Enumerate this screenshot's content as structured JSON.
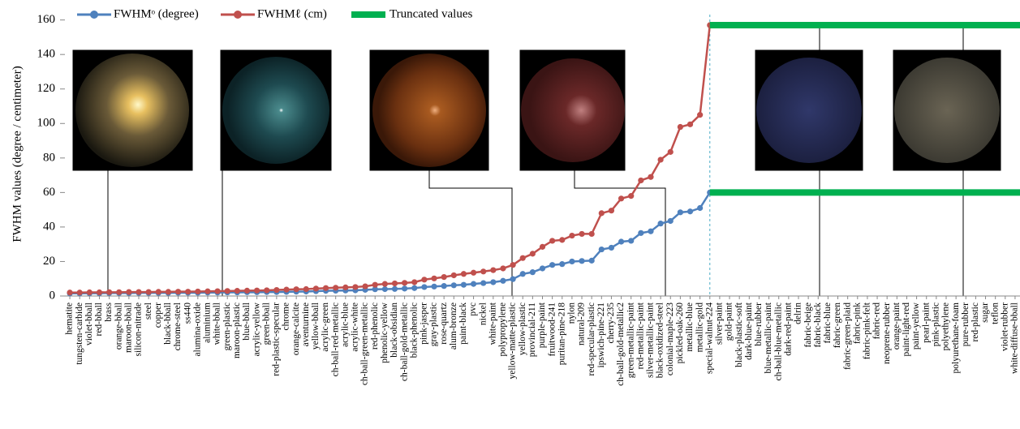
{
  "chart_data": {
    "type": "line",
    "y_label": "FWHM values (degree / centimeter)",
    "categories": [
      "hematite",
      "tungsten-carbide",
      "violet-bball",
      "red-bball",
      "brass",
      "orange-bball",
      "maroon-bball",
      "silicon-nitrade",
      "steel",
      "copper",
      "black-bball",
      "chrome-steel",
      "ss440",
      "alumina-oxide",
      "aluminium",
      "white-bball",
      "green-plastic",
      "maroon-plastic",
      "blue-bball",
      "acrylic-yellow",
      "green-bball",
      "red-plastic-specular",
      "chrome",
      "orange-calcite",
      "aventurnine",
      "yellow-bball",
      "acrylic-green",
      "ch-ball-red-metallic",
      "acrylic-blue",
      "acrylic-white",
      "ch-ball-green-metallic",
      "red-phenolic",
      "phenolic-yellow",
      "black-obsidian",
      "ch-ball-gold-metallic",
      "black-phenolic",
      "pink-jasper",
      "gray-plastic",
      "rose-quartz",
      "alum-bronze",
      "paint-black",
      "pvc",
      "nickel",
      "white-paint",
      "polypropylene",
      "yellow-matte-plastic",
      "yellow-plastic",
      "provincial-211",
      "purple-paint",
      "fruitwood-241",
      "puritan-pine-218",
      "nylon",
      "natural-209",
      "red-specular-plastic",
      "ipswich-pine-221",
      "cherry-235",
      "ch-ball-gold-metallic2",
      "green-metallic-paint",
      "red-metallic-paint",
      "silver-metallic-paint",
      "black-oxidized-steel",
      "colonial-maple-223",
      "pickled-oak-260",
      "metallic-blue",
      "metallic-gold",
      "special-walnut-224",
      "silver-paint",
      "gold-paint",
      "black-plastic-soft",
      "dark-blue-paint",
      "blue-rubber",
      "blue-metallic-paint",
      "ch-ball-blue-metallic",
      "dark-red-paint",
      "delrin",
      "fabric-beige",
      "fabric-black",
      "fabric-blue",
      "fabric-green",
      "fabric-green-plaid",
      "fabric-pink",
      "fabric-pink-felt",
      "fabric-red",
      "neoprene-rubber",
      "orange-paint",
      "paint-light-red",
      "paint-yellow",
      "pearl-paint",
      "pink-plastic",
      "polyethylene",
      "polyurethane-foam",
      "pure-rubber",
      "red-plastic",
      "sugar",
      "teflon",
      "violet-rubber",
      "white-diffuse-bball"
    ],
    "series": [
      {
        "name": "FWHMᵒ (degree)",
        "color": "#4f81bd",
        "values": [
          1.5,
          1.5,
          1.6,
          1.6,
          1.7,
          1.7,
          1.7,
          1.8,
          1.8,
          1.8,
          1.8,
          1.9,
          1.9,
          1.9,
          2.0,
          2.0,
          2.1,
          2.1,
          2.2,
          2.2,
          2.3,
          2.3,
          2.4,
          2.5,
          2.6,
          2.8,
          3.0,
          3.1,
          3.2,
          3.3,
          3.6,
          3.9,
          4.0,
          4.1,
          4.3,
          4.6,
          5.2,
          5.5,
          5.8,
          6.2,
          6.5,
          7.0,
          7.5,
          8.0,
          8.8,
          9.8,
          12.8,
          13.8,
          16.0,
          18.0,
          18.5,
          20.0,
          20.3,
          20.5,
          27.0,
          28.0,
          31.5,
          32.0,
          36.5,
          37.5,
          42.0,
          43.5,
          48.5,
          49.0,
          51.0,
          60,
          null,
          null,
          null,
          null,
          null,
          null,
          null,
          null,
          null,
          null,
          null,
          null,
          null,
          null,
          null,
          null,
          null,
          null,
          null,
          null,
          null,
          null,
          null,
          null,
          null,
          null,
          null,
          null,
          null,
          null,
          null
        ]
      },
      {
        "name": "FWHMℓ (cm)",
        "color": "#c0504d",
        "values": [
          2.0,
          2.0,
          2.1,
          2.1,
          2.2,
          2.2,
          2.3,
          2.3,
          2.3,
          2.4,
          2.4,
          2.5,
          2.5,
          2.6,
          2.7,
          2.8,
          2.9,
          3.0,
          3.1,
          3.2,
          3.3,
          3.5,
          3.7,
          3.9,
          4.0,
          4.3,
          4.6,
          4.8,
          5.0,
          5.2,
          5.6,
          6.5,
          7.0,
          7.3,
          7.6,
          8.0,
          9.5,
          10.2,
          11.0,
          12.0,
          12.8,
          13.5,
          14.2,
          15.0,
          16.0,
          18.0,
          22.0,
          24.5,
          28.5,
          32.0,
          32.5,
          35.0,
          36.0,
          36.0,
          48.0,
          49.5,
          56.5,
          58.0,
          67.0,
          69.0,
          79.0,
          83.5,
          98.0,
          99.5,
          105.0,
          157,
          null,
          null,
          null,
          null,
          null,
          null,
          null,
          null,
          null,
          null,
          null,
          null,
          null,
          null,
          null,
          null,
          null,
          null,
          null,
          null,
          null,
          null,
          null,
          null,
          null,
          null,
          null,
          null,
          null,
          null,
          null
        ]
      }
    ],
    "truncated": {
      "name": "Truncated values",
      "color": "#00b050",
      "values": [
        157,
        60
      ]
    },
    "ylim": [
      0,
      165
    ],
    "yticks": [
      0,
      20,
      40,
      60,
      80,
      100,
      120,
      140,
      160
    ]
  }
}
